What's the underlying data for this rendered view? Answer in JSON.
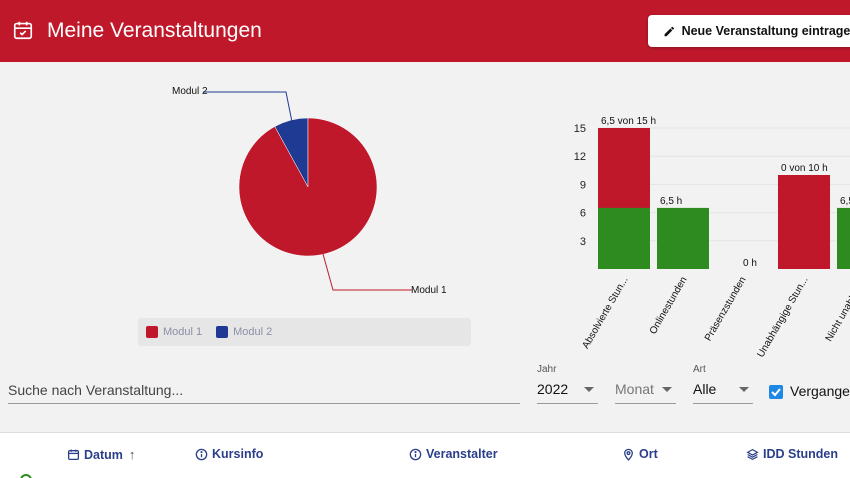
{
  "header": {
    "title": "Meine Veranstaltungen",
    "new_event_label": "Neue Veranstaltung eintragen",
    "calendar_icon": "calendar-check-icon",
    "pencil_icon": "pencil-icon"
  },
  "pie_chart": {
    "chart_data": {
      "type": "pie",
      "slices": [
        {
          "label": "Modul 1",
          "value": 92,
          "color": "#c0182b"
        },
        {
          "label": "Modul 2",
          "value": 8,
          "color": "#1f3a93"
        }
      ]
    },
    "legend": [
      {
        "label": "Modul 1",
        "color": "#c0182b"
      },
      {
        "label": "Modul 2",
        "color": "#1f3a93"
      }
    ]
  },
  "chart_data": {
    "type": "bar",
    "ylim": [
      0,
      15
    ],
    "yticks": [
      "3",
      "6",
      "9",
      "12",
      "15"
    ],
    "categories": [
      "Absolvierte Stun...",
      "Onlinestunden",
      "Präsenzstunden",
      "Unabhängige Stun...",
      "Nicht unabhän..."
    ],
    "series": [
      {
        "name": "total",
        "color": "#c0182b",
        "values": [
          15,
          0,
          0,
          10,
          0
        ]
      },
      {
        "name": "done",
        "color": "#2e8b1f",
        "values": [
          6.5,
          6.5,
          0,
          0,
          6.5
        ]
      }
    ],
    "data_labels": [
      "6,5 von 15 h",
      "6,5 h",
      "0 h",
      "0 von 10 h",
      "6,5"
    ]
  },
  "filters": {
    "search_placeholder": "Suche nach Veranstaltung...",
    "year_label": "Jahr",
    "year_value": "2022",
    "month_value": "Monat",
    "type_label": "Art",
    "type_value": "Alle",
    "past_label": "Vergangen"
  },
  "table": {
    "columns": [
      {
        "label": "Datum",
        "icon": "calendar-icon"
      },
      {
        "label": "Kursinfo",
        "icon": "info-icon"
      },
      {
        "label": "Veranstalter",
        "icon": "info-icon"
      },
      {
        "label": "Ort",
        "icon": "location-pin-icon"
      },
      {
        "label": "IDD Stunden",
        "icon": "layers-icon"
      }
    ],
    "sort_indicator": "↑"
  }
}
